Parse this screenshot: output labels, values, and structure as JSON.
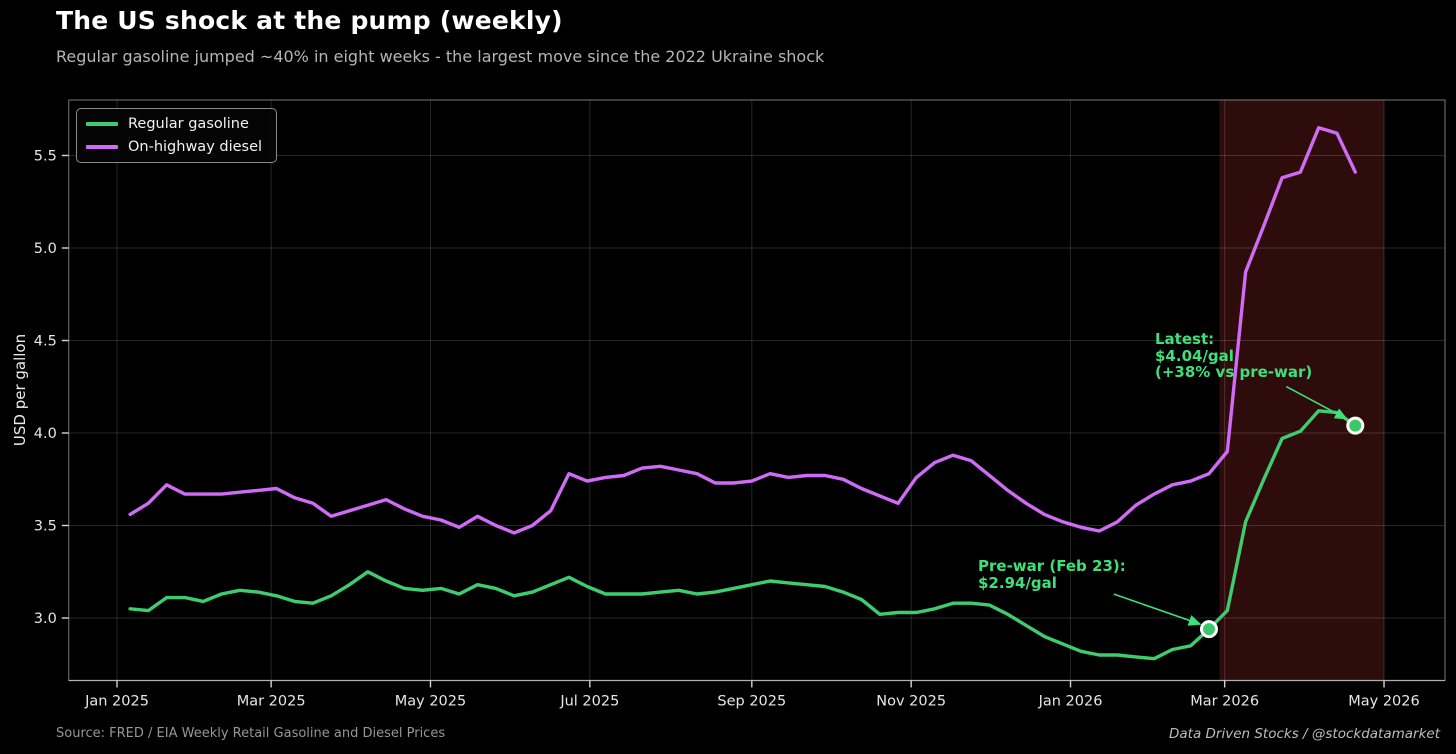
{
  "header": {
    "title": "The US shock at the pump (weekly)",
    "subtitle": "Regular gasoline jumped ~40% in eight weeks - the largest move since the 2022 Ukraine shock"
  },
  "footer": {
    "source": "Source: FRED / EIA Weekly Retail Gasoline and Diesel Prices",
    "credit": "Data Driven Stocks  /  @stockdatamarket"
  },
  "colors": {
    "background": "#000000",
    "gasoline": "#3ecc6e",
    "diesel": "#cf6bf5",
    "annotation": "#3fe07a",
    "war_shade": "#2e0c0c",
    "grid": "rgba(255,255,255,0.15)",
    "spine": "#787878",
    "tick": "#d5d5d5",
    "marker_fill": "#3bc768",
    "marker_edge": "#ffffff"
  },
  "chart_data": {
    "type": "line",
    "title": "The US shock at the pump (weekly)",
    "xlabel": "",
    "ylabel": "USD per gallon",
    "ylim": [
      2.66,
      5.8
    ],
    "yticks": [
      3.0,
      3.5,
      4.0,
      4.5,
      5.0,
      5.5
    ],
    "xticks": [
      {
        "date": "2025-01-01",
        "label": "Jan 2025"
      },
      {
        "date": "2025-03-01",
        "label": "Mar 2025"
      },
      {
        "date": "2025-05-01",
        "label": "May 2025"
      },
      {
        "date": "2025-07-01",
        "label": "Jul 2025"
      },
      {
        "date": "2025-09-01",
        "label": "Sep 2025"
      },
      {
        "date": "2025-11-01",
        "label": "Nov 2025"
      },
      {
        "date": "2026-01-01",
        "label": "Jan 2026"
      },
      {
        "date": "2026-03-01",
        "label": "Mar 2026"
      },
      {
        "date": "2026-05-01",
        "label": "May 2026"
      }
    ],
    "grid": true,
    "legend_position": "upper left",
    "x_dates": [
      "2025-01-06",
      "2025-01-13",
      "2025-01-20",
      "2025-01-27",
      "2025-02-03",
      "2025-02-10",
      "2025-02-17",
      "2025-02-24",
      "2025-03-03",
      "2025-03-10",
      "2025-03-17",
      "2025-03-24",
      "2025-03-31",
      "2025-04-07",
      "2025-04-14",
      "2025-04-21",
      "2025-04-28",
      "2025-05-05",
      "2025-05-12",
      "2025-05-19",
      "2025-05-26",
      "2025-06-02",
      "2025-06-09",
      "2025-06-16",
      "2025-06-23",
      "2025-06-30",
      "2025-07-07",
      "2025-07-14",
      "2025-07-21",
      "2025-07-28",
      "2025-08-04",
      "2025-08-11",
      "2025-08-18",
      "2025-08-25",
      "2025-09-01",
      "2025-09-08",
      "2025-09-15",
      "2025-09-22",
      "2025-09-29",
      "2025-10-06",
      "2025-10-13",
      "2025-10-20",
      "2025-10-27",
      "2025-11-03",
      "2025-11-10",
      "2025-11-17",
      "2025-11-24",
      "2025-12-01",
      "2025-12-08",
      "2025-12-15",
      "2025-12-22",
      "2025-12-29",
      "2026-01-05",
      "2026-01-12",
      "2026-01-19",
      "2026-01-26",
      "2026-02-02",
      "2026-02-09",
      "2026-02-16",
      "2026-02-23",
      "2026-03-02",
      "2026-03-09",
      "2026-03-16",
      "2026-03-23",
      "2026-03-30",
      "2026-04-06",
      "2026-04-13",
      "2026-04-20"
    ],
    "series": [
      {
        "name": "Regular gasoline",
        "color": "#3ecc6e",
        "values": [
          3.05,
          3.04,
          3.11,
          3.11,
          3.09,
          3.13,
          3.15,
          3.14,
          3.12,
          3.09,
          3.08,
          3.12,
          3.18,
          3.25,
          3.2,
          3.16,
          3.15,
          3.16,
          3.13,
          3.18,
          3.16,
          3.12,
          3.14,
          3.18,
          3.22,
          3.17,
          3.13,
          3.13,
          3.13,
          3.14,
          3.15,
          3.13,
          3.14,
          3.16,
          3.18,
          3.2,
          3.19,
          3.18,
          3.17,
          3.14,
          3.1,
          3.02,
          3.03,
          3.03,
          3.05,
          3.08,
          3.08,
          3.07,
          3.02,
          2.96,
          2.9,
          2.86,
          2.82,
          2.8,
          2.8,
          2.79,
          2.78,
          2.83,
          2.85,
          2.94,
          3.04,
          3.52,
          3.75,
          3.97,
          4.01,
          4.12,
          4.11,
          4.04
        ]
      },
      {
        "name": "On-highway diesel",
        "color": "#cf6bf5",
        "values": [
          3.56,
          3.62,
          3.72,
          3.67,
          3.67,
          3.67,
          3.68,
          3.69,
          3.7,
          3.65,
          3.62,
          3.55,
          3.58,
          3.61,
          3.64,
          3.59,
          3.55,
          3.53,
          3.49,
          3.55,
          3.5,
          3.46,
          3.5,
          3.58,
          3.78,
          3.74,
          3.76,
          3.77,
          3.81,
          3.82,
          3.8,
          3.78,
          3.73,
          3.73,
          3.74,
          3.78,
          3.76,
          3.77,
          3.77,
          3.75,
          3.7,
          3.66,
          3.62,
          3.76,
          3.84,
          3.88,
          3.85,
          3.77,
          3.69,
          3.62,
          3.56,
          3.52,
          3.49,
          3.47,
          3.52,
          3.61,
          3.67,
          3.72,
          3.74,
          3.78,
          3.9,
          4.87,
          5.12,
          5.38,
          5.41,
          5.65,
          5.62,
          5.41
        ]
      }
    ],
    "war_shade": {
      "start": "2026-02-27",
      "end": "2026-05-01",
      "color": "#2e0c0c"
    },
    "annotations": [
      {
        "id": "latest",
        "text": "Latest:\n$4.04/gal\n(+38% vs pre-war)",
        "target_date": "2026-04-20",
        "value": 4.04
      },
      {
        "id": "prewar",
        "text": "Pre-war (Feb 23):\n$2.94/gal",
        "target_date": "2026-02-23",
        "value": 2.94
      }
    ]
  }
}
